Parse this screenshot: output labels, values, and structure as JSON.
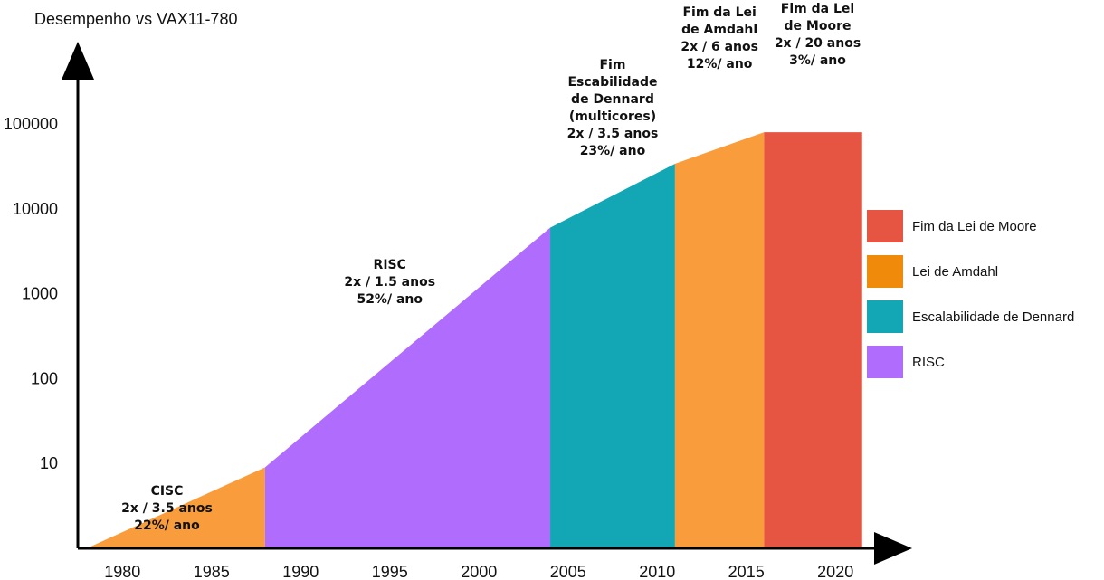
{
  "chart_data": {
    "type": "area",
    "ylabel": "Desempenho vs VAX11-780",
    "y_scale": "log",
    "ylim": [
      1,
      100000
    ],
    "xlim": [
      1977.5,
      2024
    ],
    "x_ticks": [
      "1980",
      "1985",
      "1990",
      "1995",
      "2000",
      "2005",
      "2010",
      "2015",
      "2020"
    ],
    "y_ticks": [
      "10",
      "100",
      "1000",
      "10000",
      "100000"
    ],
    "segments": [
      {
        "name": "CISC",
        "legend": "Lei de Amdahl",
        "color": "#F99D3C",
        "x": [
          1978,
          1988
        ],
        "y": [
          1,
          9
        ]
      },
      {
        "name": "RISC",
        "legend": "RISC",
        "color": "#B06CFC",
        "x": [
          1988,
          2004
        ],
        "y": [
          9,
          6000
        ]
      },
      {
        "name": "Dennard",
        "legend": "Escalabilidade de Dennard",
        "color": "#13A6B4",
        "x": [
          2004,
          2011
        ],
        "y": [
          6000,
          34000
        ]
      },
      {
        "name": "Amdahl",
        "legend": "Lei de Amdahl",
        "color": "#F99D3C",
        "x": [
          2011,
          2016
        ],
        "y": [
          34000,
          80000
        ]
      },
      {
        "name": "Moore",
        "legend": "Fim da Lei de Moore",
        "color": "#E55541",
        "x": [
          2016,
          2021.5
        ],
        "y": [
          80000,
          80000
        ]
      }
    ],
    "annotations": [
      {
        "id": "cisc",
        "at": [
          1982.5,
          2.6
        ],
        "lines": [
          "CISC",
          "2x / 3.5 anos",
          "22%/ ano"
        ]
      },
      {
        "id": "risc",
        "at": [
          1995,
          1200
        ],
        "lines": [
          "RISC",
          "2x / 1.5 anos",
          "52%/ ano"
        ]
      },
      {
        "id": "dennard",
        "at": [
          2007.5,
          100000
        ],
        "lines": [
          "Fim",
          "Escabilidade",
          "de Dennard",
          "(multicores)",
          "",
          "2x / 3.5 anos",
          "23%/ ano"
        ]
      },
      {
        "id": "amdahl",
        "at": [
          2013.5,
          100000
        ],
        "lines": [
          "Fim da Lei",
          "de Amdahl",
          "",
          "2x / 6 anos",
          "12%/ ano"
        ]
      },
      {
        "id": "moore",
        "at": [
          2019,
          100000
        ],
        "lines": [
          "Fim da Lei",
          "de Moore",
          "",
          "2x / 20 anos",
          "3%/ ano"
        ]
      }
    ],
    "legend": {
      "placement": "right",
      "entries": [
        {
          "label": "Fim da Lei de Moore",
          "color": "#E55541"
        },
        {
          "label": "Lei de Amdahl",
          "color": "#F08A0A"
        },
        {
          "label": "Escalabilidade de Dennard",
          "color": "#13A6B4"
        },
        {
          "label": "RISC",
          "color": "#B06CFC"
        }
      ]
    }
  }
}
